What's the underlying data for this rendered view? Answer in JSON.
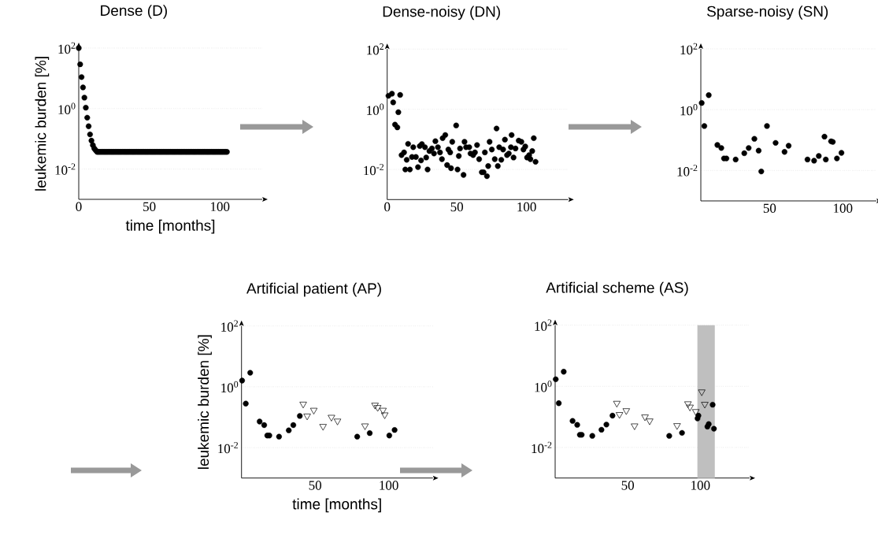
{
  "chart_data": [
    {
      "type": "scatter",
      "title": "Dense (D)",
      "xlabel": "time [months]",
      "ylabel": "leukemic burden [%]",
      "xlim": [
        0,
        130
      ],
      "ylim": [
        0.001,
        100
      ],
      "xticks": [
        0,
        50,
        100
      ],
      "yticks": [
        {
          "value": 0.01,
          "label": "10$^{-2}$"
        },
        {
          "value": 1,
          "label": "10$^{0}$"
        },
        {
          "value": 100,
          "label": "10$^{2}$"
        }
      ],
      "log": "y",
      "grid": "y",
      "series": [
        {
          "color": "#000000",
          "marker": "circle",
          "x": [
            0,
            1,
            2,
            3,
            4,
            5,
            6,
            7,
            8,
            9,
            10,
            11,
            12,
            13,
            14,
            15,
            16,
            17,
            18,
            19,
            20,
            21,
            22,
            23,
            24,
            25,
            26,
            27,
            28,
            29,
            30,
            31,
            32,
            33,
            34,
            35,
            36,
            37,
            38,
            39,
            40,
            41,
            42,
            43,
            44,
            45,
            46,
            47,
            48,
            49,
            50,
            51,
            52,
            53,
            54,
            55,
            56,
            57,
            58,
            59,
            60,
            61,
            62,
            63,
            64,
            65,
            66,
            67,
            68,
            69,
            70,
            71,
            72,
            73,
            74,
            75,
            76,
            77,
            78,
            79,
            80,
            81,
            82,
            83,
            84,
            85,
            86,
            87,
            88,
            89,
            90,
            91,
            92,
            93,
            94,
            95,
            96,
            97,
            98,
            99,
            100,
            101,
            102,
            103,
            104,
            105
          ],
          "values": [
            100,
            29,
            11,
            5,
            2.3,
            1.07,
            0.5,
            0.26,
            0.14,
            0.087,
            0.062,
            0.048,
            0.042,
            0.037,
            0.037,
            0.037,
            0.037,
            0.037,
            0.037,
            0.037,
            0.037,
            0.037,
            0.037,
            0.037,
            0.037,
            0.037,
            0.037,
            0.037,
            0.037,
            0.037,
            0.037,
            0.037,
            0.037,
            0.037,
            0.037,
            0.037,
            0.037,
            0.037,
            0.037,
            0.037,
            0.037,
            0.037,
            0.037,
            0.037,
            0.037,
            0.037,
            0.037,
            0.037,
            0.037,
            0.037,
            0.037,
            0.037,
            0.037,
            0.037,
            0.037,
            0.037,
            0.037,
            0.037,
            0.037,
            0.037,
            0.037,
            0.037,
            0.037,
            0.037,
            0.037,
            0.037,
            0.037,
            0.037,
            0.037,
            0.037,
            0.037,
            0.037,
            0.037,
            0.037,
            0.037,
            0.037,
            0.037,
            0.037,
            0.037,
            0.037,
            0.037,
            0.037,
            0.037,
            0.037,
            0.037,
            0.037,
            0.037,
            0.037,
            0.037,
            0.037,
            0.037,
            0.037,
            0.037,
            0.037,
            0.037,
            0.037,
            0.037,
            0.037,
            0.037,
            0.037,
            0.037,
            0.037,
            0.037,
            0.037,
            0.037,
            0.037
          ]
        }
      ]
    },
    {
      "type": "scatter",
      "title": "Dense-noisy (DN)",
      "xlim": [
        0,
        130
      ],
      "ylim": [
        0.001,
        100
      ],
      "xticks": [
        0,
        50,
        100
      ],
      "yticks": [
        {
          "value": 0.01,
          "label": "10$^{-2}$"
        },
        {
          "value": 1,
          "label": "10$^{0}$"
        },
        {
          "value": 100,
          "label": "10$^{2}$"
        }
      ],
      "log": "y",
      "grid": "y",
      "series": [
        {
          "color": "#000000",
          "marker": "circle",
          "x": [
            0.9,
            3.4,
            4.3,
            9.3,
            8.0,
            5.6,
            7.3,
            10.3,
            12.1,
            15,
            14,
            13,
            16.3,
            18.7,
            17.8,
            20.6,
            22.1,
            23.4,
            24.9,
            24.3,
            27.1,
            28,
            29,
            30.3,
            32.1,
            33.6,
            34.6,
            36.4,
            37.9,
            39.3,
            39.8,
            41.7,
            43,
            43.9,
            45.2,
            45.8,
            46.7,
            49.5,
            50.5,
            51.4,
            52.3,
            54.8,
            55.5,
            56.6,
            58.9,
            59.8,
            61.7,
            63,
            64.5,
            66,
            67.9,
            69.2,
            70.1,
            71.6,
            72.5,
            73.5,
            75.1,
            77.2,
            78.5,
            79.4,
            80.4,
            81.9,
            83.2,
            84.5,
            86,
            87.3,
            88.8,
            89.3,
            90.7,
            92.1,
            94.4,
            96.3,
            97.8,
            99.1,
            100.4,
            101.9,
            102.8,
            104.1,
            105.2,
            106.5
          ],
          "values": [
            2.8,
            3.3,
            1.7,
            3.0,
            0.8,
            0.31,
            0.25,
            0.03,
            0.037,
            0.071,
            0.021,
            0.01,
            0.01,
            0.055,
            0.026,
            0.026,
            0.012,
            0.06,
            0.07,
            0.02,
            0.055,
            0.025,
            0.01,
            0.041,
            0.05,
            0.034,
            0.087,
            0.055,
            0.037,
            0.022,
            0.11,
            0.14,
            0.014,
            0.046,
            0.037,
            0.011,
            0.083,
            0.29,
            0.01,
            0.028,
            0.05,
            0.0066,
            0.083,
            0.055,
            0.055,
            0.034,
            0.03,
            0.037,
            0.065,
            0.022,
            0.0081,
            0.0081,
            0.037,
            0.006,
            0.013,
            0.083,
            0.046,
            0.022,
            0.23,
            0.013,
            0.055,
            0.021,
            0.046,
            0.098,
            0.03,
            0.034,
            0.055,
            0.14,
            0.025,
            0.05,
            0.091,
            0.083,
            0.046,
            0.058,
            0.025,
            0.03,
            0.022,
            0.041,
            0.11,
            0.018
          ]
        }
      ]
    },
    {
      "type": "scatter",
      "title": "Sparse-noisy (SN)",
      "xlim": [
        3,
        123
      ],
      "ylim": [
        0.001,
        100
      ],
      "xticks": [
        50,
        100
      ],
      "yticks": [
        {
          "value": 0.01,
          "label": "10$^{-2}$"
        },
        {
          "value": 1,
          "label": "10$^{0}$"
        },
        {
          "value": 100,
          "label": "10$^{2}$"
        }
      ],
      "log": "y",
      "grid": "y",
      "series": [
        {
          "color": "#000000",
          "marker": "circle",
          "x": [
            3.6,
            5.4,
            8.4,
            14.3,
            17,
            18.8,
            20.5,
            26.8,
            32.7,
            35.7,
            39.6,
            42.5,
            44.3,
            48.2,
            54.1,
            60.2,
            63,
            75.9,
            80.4,
            83.6,
            87.5,
            88.4,
            92,
            93.2,
            96,
            99.1
          ],
          "values": [
            1.66,
            0.29,
            3.0,
            0.069,
            0.055,
            0.025,
            0.025,
            0.023,
            0.037,
            0.055,
            0.11,
            0.045,
            0.0093,
            0.29,
            0.081,
            0.041,
            0.065,
            0.023,
            0.021,
            0.03,
            0.13,
            0.023,
            0.091,
            0.087,
            0.025,
            0.038
          ]
        }
      ]
    },
    {
      "type": "scatter",
      "title": "Artificial patient (AP)",
      "xlabel": "time [months]",
      "ylabel": "leukemic burden [%]",
      "xlim": [
        0,
        130
      ],
      "ylim": [
        0.001,
        100
      ],
      "xticks": [
        50,
        100
      ],
      "yticks": [
        {
          "value": 0.01,
          "label": "10$^{-2}$"
        },
        {
          "value": 1,
          "label": "10$^{0}$"
        },
        {
          "value": 100,
          "label": "10$^{2}$"
        }
      ],
      "log": "y",
      "grid": "y",
      "series": [
        {
          "color": "#000000",
          "marker": "circle",
          "x": [
            0.4,
            2.9,
            5.9,
            12.3,
            15.4,
            17.5,
            18.9,
            25.5,
            32.1,
            35.2,
            39.6,
            78.6,
            87.1,
            100.4,
            104
          ],
          "values": [
            1.6,
            0.28,
            2.9,
            0.072,
            0.055,
            0.025,
            0.025,
            0.023,
            0.037,
            0.055,
            0.11,
            0.023,
            0.03,
            0.025,
            0.038
          ]
        },
        {
          "color": "#000000",
          "marker": "triangle",
          "x": [
            41.9,
            44.6,
            49.1,
            55.4,
            61.1,
            65.2,
            83.9,
            90.7,
            92.5,
            96.1,
            97.3
          ],
          "values": [
            0.27,
            0.11,
            0.17,
            0.05,
            0.1,
            0.075,
            0.052,
            0.25,
            0.21,
            0.17,
            0.12
          ]
        }
      ]
    },
    {
      "type": "scatter",
      "title": "Artificial scheme (AS)",
      "xlim": [
        0,
        134
      ],
      "ylim": [
        0.001,
        100
      ],
      "xticks": [
        50,
        100
      ],
      "yticks": [
        {
          "value": 0.01,
          "label": "10$^{-2}$"
        },
        {
          "value": 1,
          "label": "10$^{0}$"
        },
        {
          "value": 100,
          "label": "10$^{2}$"
        }
      ],
      "log": "y",
      "grid": "y",
      "bands": [
        {
          "axis": "x",
          "from": 98,
          "to": 110,
          "color": "#bfbfbf"
        }
      ],
      "series": [
        {
          "color": "#000000",
          "marker": "circle",
          "x": [
            0.4,
            2.5,
            5.9,
            12,
            15.2,
            17,
            18.3,
            25.6,
            31.9,
            35.3,
            39.5,
            78.6,
            87.4,
            98.1,
            98.7,
            104.9,
            105.8,
            108.5,
            109.4
          ],
          "values": [
            1.7,
            0.28,
            3.0,
            0.074,
            0.055,
            0.026,
            0.026,
            0.024,
            0.038,
            0.056,
            0.11,
            0.024,
            0.03,
            0.089,
            0.11,
            0.048,
            0.058,
            0.25,
            0.041
          ]
        },
        {
          "color": "#000000",
          "marker": "triangle",
          "x": [
            42.5,
            44.3,
            49,
            54.7,
            61.9,
            65.1,
            84,
            91.5,
            92.9,
            96.9,
            101,
            103.1
          ],
          "values": [
            0.28,
            0.12,
            0.16,
            0.051,
            0.1,
            0.074,
            0.052,
            0.27,
            0.21,
            0.15,
            0.66,
            0.26
          ]
        }
      ]
    }
  ]
}
